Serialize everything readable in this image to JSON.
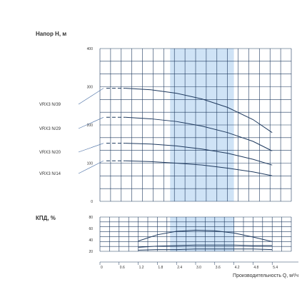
{
  "chart_data": [
    {
      "type": "line",
      "ylabel": "Напор H, м",
      "y_ticks": [
        "400",
        "300",
        "200",
        "100",
        "0"
      ],
      "ylim": [
        0,
        400
      ],
      "xlim": [
        0,
        6
      ],
      "grid": true,
      "highlight_band_x": [
        2.2,
        4.2
      ],
      "highlight_color": "#cfe3f6",
      "curve_color": "#1f3a5f",
      "series": [
        {
          "name": "VRX3 N/39",
          "x": [
            0.2,
            0.8,
            1.6,
            2.4,
            3.2,
            4.0,
            4.8,
            5.4
          ],
          "y": [
            296,
            296,
            292,
            283,
            268,
            246,
            214,
            180
          ]
        },
        {
          "name": "VRX3 N/29",
          "x": [
            0.2,
            0.8,
            1.6,
            2.4,
            3.2,
            4.0,
            4.8,
            5.4
          ],
          "y": [
            220,
            220,
            216,
            209,
            197,
            180,
            157,
            132
          ]
        },
        {
          "name": "VRX3 N/20",
          "x": [
            0.2,
            0.8,
            1.6,
            2.4,
            3.2,
            4.0,
            4.8,
            5.4
          ],
          "y": [
            152,
            152,
            150,
            145,
            137,
            126,
            110,
            95
          ]
        },
        {
          "name": "VRX3 N/14",
          "x": [
            0.2,
            0.8,
            1.6,
            2.4,
            3.2,
            4.0,
            4.8,
            5.4
          ],
          "y": [
            106,
            106,
            104,
            100,
            95,
            87,
            77,
            67
          ]
        }
      ],
      "dashed_until_x": 1.2
    },
    {
      "type": "line",
      "ylabel": "КПД, %",
      "y_ticks": [
        "80",
        "60",
        "40",
        "20"
      ],
      "ylim": [
        20,
        80
      ],
      "xlim": [
        0,
        6
      ],
      "xlabel": "Производительность Q, м³/ч",
      "x_ticks": [
        "0",
        "0.6",
        "1.2",
        "1.8",
        "2.4",
        "3.0",
        "3.6",
        "4.2",
        "4.8",
        "5.4"
      ],
      "grid": true,
      "highlight_band_x": [
        2.2,
        4.2
      ],
      "series": [
        {
          "x": [
            1.2,
            1.8,
            2.4,
            3.0,
            3.6,
            4.2,
            4.8,
            5.4
          ],
          "y": [
            38,
            49,
            55,
            57,
            56,
            52,
            45,
            37
          ]
        },
        {
          "x": [
            1.2,
            1.8,
            2.4,
            3.0,
            3.6,
            4.2,
            4.8,
            5.4
          ],
          "y": [
            27,
            29,
            30,
            31,
            31,
            31,
            30,
            30
          ]
        },
        {
          "x": [
            1.2,
            1.8,
            2.4,
            3.0,
            3.6,
            4.2,
            4.8,
            5.4
          ],
          "y": [
            22,
            23,
            23,
            24,
            24,
            24,
            24,
            23
          ]
        }
      ]
    }
  ]
}
